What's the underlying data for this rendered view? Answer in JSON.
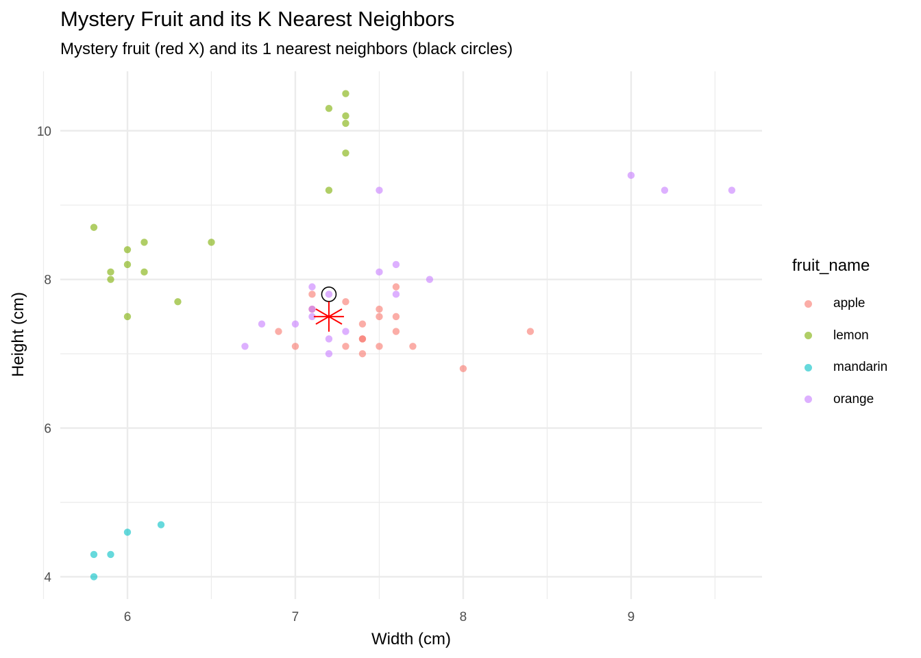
{
  "chart_data": {
    "type": "scatter",
    "title": "Mystery Fruit and its K Nearest Neighbors",
    "subtitle": "Mystery fruit (red X) and its 1 nearest neighbors (black circles)",
    "xlabel": "Width (cm)",
    "ylabel": "Height (cm)",
    "xlim": [
      5.6,
      9.78
    ],
    "ylim": [
      3.7,
      10.8
    ],
    "xticks": [
      6,
      7,
      8,
      9
    ],
    "yticks": [
      4,
      6,
      8,
      10
    ],
    "x_minor_ticks": [
      5.5,
      6.5,
      7.5,
      8.5,
      9.5
    ],
    "y_minor_ticks": [
      5,
      7,
      9
    ],
    "grid": true,
    "legend": {
      "title": "fruit_name",
      "position": "right",
      "entries": [
        "apple",
        "lemon",
        "mandarin",
        "orange"
      ]
    },
    "colors": {
      "apple": "#F8766D",
      "lemon": "#7CAE00",
      "mandarin": "#00BFC4",
      "orange": "#C77CFF",
      "mystery": "#FF0000",
      "neighbor_circle": "#000000"
    },
    "series": [
      {
        "name": "apple",
        "points": [
          [
            7.1,
            7.8
          ],
          [
            7.1,
            7.6
          ],
          [
            7.3,
            7.7
          ],
          [
            7.5,
            7.6
          ],
          [
            7.6,
            7.9
          ],
          [
            7.6,
            7.5
          ],
          [
            7.5,
            7.5
          ],
          [
            6.9,
            7.3
          ],
          [
            7.0,
            7.1
          ],
          [
            7.4,
            7.4
          ],
          [
            7.4,
            7.2
          ],
          [
            7.4,
            7.2
          ],
          [
            7.6,
            7.3
          ],
          [
            7.3,
            7.1
          ],
          [
            7.5,
            7.1
          ],
          [
            7.4,
            7.0
          ],
          [
            7.7,
            7.1
          ],
          [
            8.0,
            6.8
          ],
          [
            8.4,
            7.3
          ]
        ]
      },
      {
        "name": "lemon",
        "points": [
          [
            7.3,
            10.5
          ],
          [
            7.2,
            10.3
          ],
          [
            7.3,
            10.2
          ],
          [
            7.3,
            10.1
          ],
          [
            7.3,
            9.7
          ],
          [
            7.2,
            9.2
          ],
          [
            5.8,
            8.7
          ],
          [
            6.1,
            8.5
          ],
          [
            6.5,
            8.5
          ],
          [
            6.0,
            8.4
          ],
          [
            6.0,
            8.2
          ],
          [
            5.9,
            8.1
          ],
          [
            6.1,
            8.1
          ],
          [
            5.9,
            8.0
          ],
          [
            6.3,
            7.7
          ],
          [
            6.0,
            7.5
          ]
        ]
      },
      {
        "name": "mandarin",
        "points": [
          [
            6.2,
            4.7
          ],
          [
            6.0,
            4.6
          ],
          [
            5.8,
            4.3
          ],
          [
            5.9,
            4.3
          ],
          [
            5.8,
            4.0
          ]
        ]
      },
      {
        "name": "orange",
        "points": [
          [
            9.0,
            9.4
          ],
          [
            9.2,
            9.2
          ],
          [
            9.6,
            9.2
          ],
          [
            7.5,
            9.2
          ],
          [
            7.6,
            8.2
          ],
          [
            7.5,
            8.1
          ],
          [
            7.8,
            8.0
          ],
          [
            7.1,
            7.9
          ],
          [
            7.2,
            7.8
          ],
          [
            7.6,
            7.8
          ],
          [
            7.1,
            7.6
          ],
          [
            7.1,
            7.5
          ],
          [
            6.8,
            7.4
          ],
          [
            7.0,
            7.4
          ],
          [
            7.3,
            7.3
          ],
          [
            7.2,
            7.2
          ],
          [
            6.7,
            7.1
          ],
          [
            7.2,
            7.0
          ]
        ]
      }
    ],
    "mystery_point": [
      7.2,
      7.5
    ],
    "nearest_neighbors": [
      [
        7.2,
        7.8
      ]
    ]
  }
}
